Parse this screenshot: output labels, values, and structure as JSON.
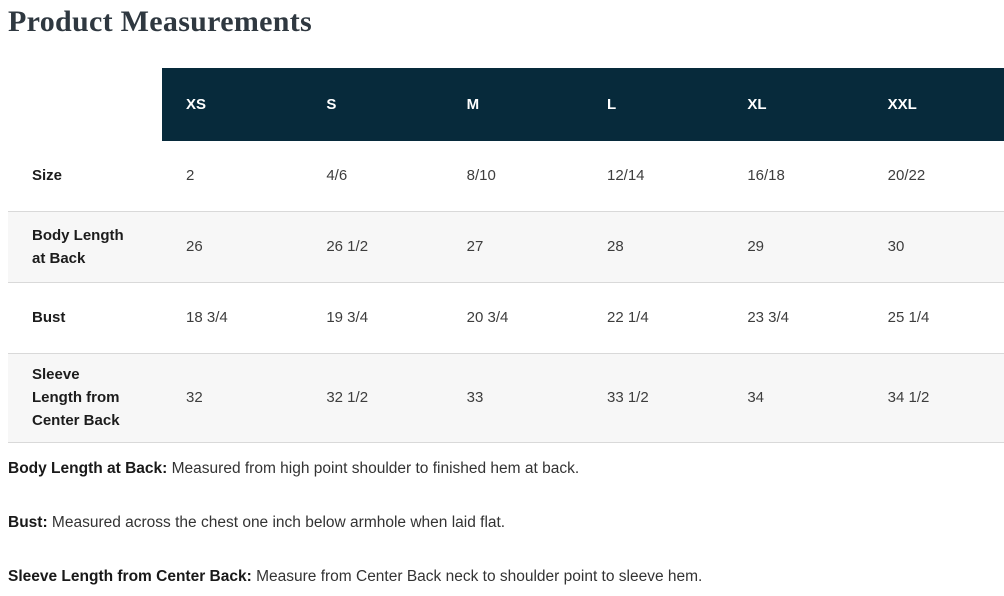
{
  "page": {
    "title": "Product Measurements"
  },
  "table": {
    "size_headers": [
      "XS",
      "S",
      "M",
      "L",
      "XL",
      "XXL"
    ],
    "rows": [
      {
        "label": "Size",
        "values": [
          "2",
          "4/6",
          "8/10",
          "12/14",
          "16/18",
          "20/22"
        ]
      },
      {
        "label": "Body Length at Back",
        "values": [
          "26",
          "26 1/2",
          "27",
          "28",
          "29",
          "30"
        ]
      },
      {
        "label": "Bust",
        "values": [
          "18 3/4",
          "19 3/4",
          "20 3/4",
          "22 1/4",
          "23 3/4",
          "25 1/4"
        ]
      },
      {
        "label": "Sleeve Length from Center Back",
        "values": [
          "32",
          "32 1/2",
          "33",
          "33 1/2",
          "34",
          "34 1/2"
        ]
      }
    ]
  },
  "notes": [
    {
      "term": "Body Length at Back:",
      "definition": "Measured from high point shoulder to finished hem at back."
    },
    {
      "term": "Bust:",
      "definition": "Measured across the chest one inch below armhole when laid flat."
    },
    {
      "term": "Sleeve Length from Center Back:",
      "definition": "Measure from Center Back neck to shoulder point to sleeve hem."
    }
  ],
  "colors": {
    "header_bg": "#072a3b",
    "header_text": "#ffffff",
    "row_alt_bg": "#f7f7f7",
    "divider": "#d9d9d9",
    "title_text": "#2f3840"
  }
}
